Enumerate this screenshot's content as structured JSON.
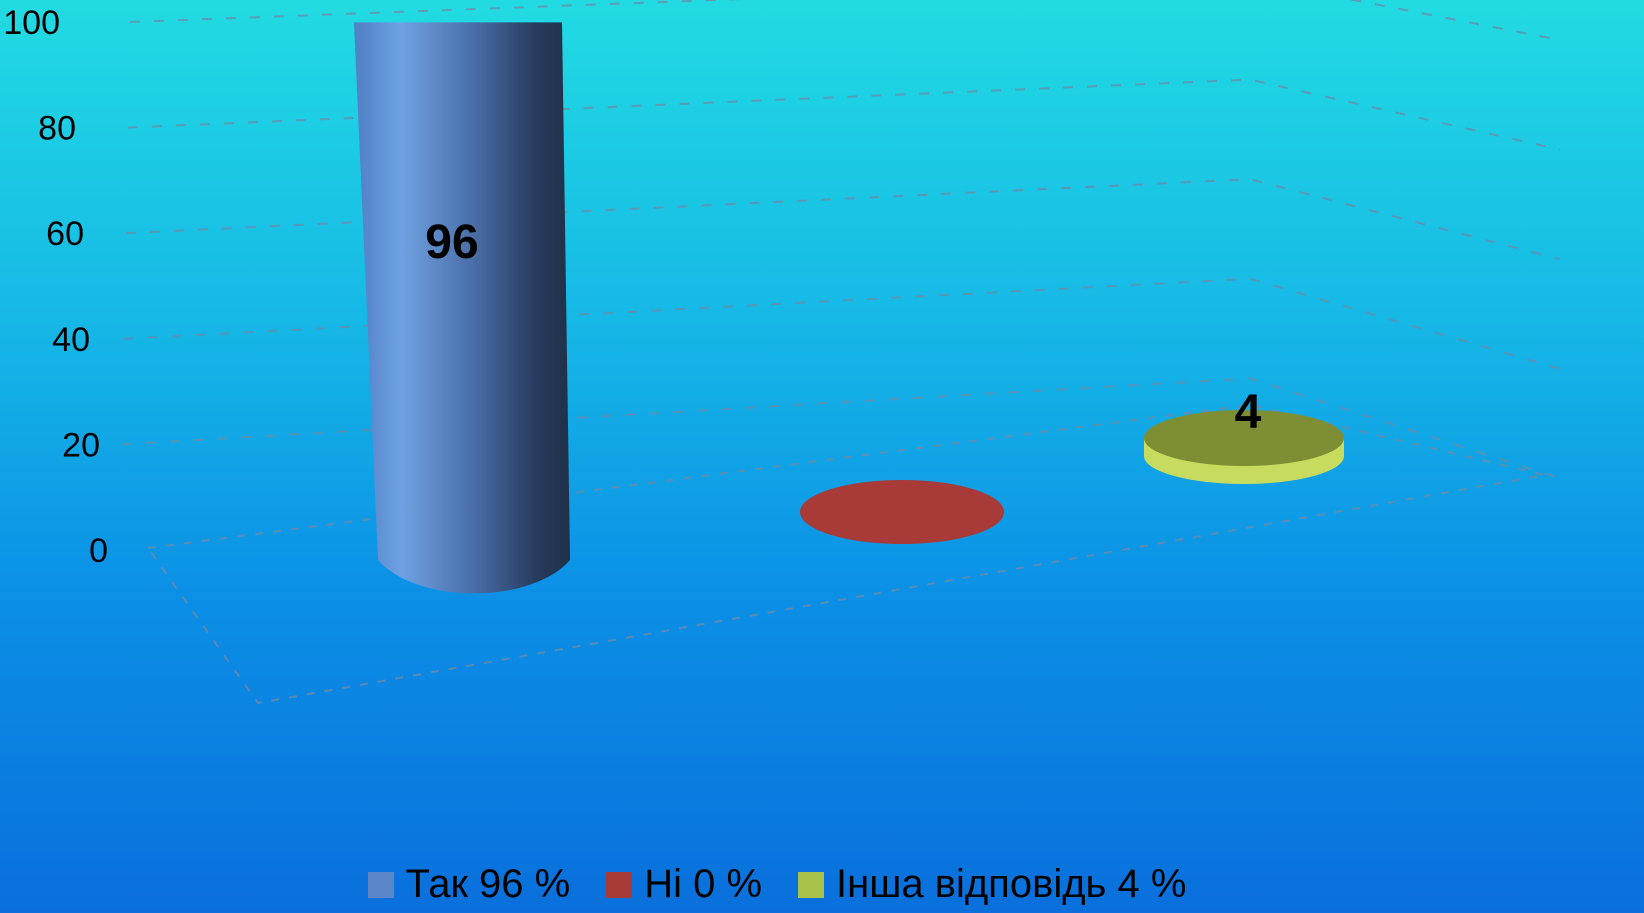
{
  "chart_data": {
    "type": "bar",
    "style": "3d-cylinder",
    "categories": [
      "Так 96 %",
      "Ні 0 %",
      "Інша відповідь 4 %"
    ],
    "values": [
      96,
      0,
      4
    ],
    "data_labels": [
      "96",
      "",
      "4"
    ],
    "colors": [
      "#5b87c9",
      "#a83a37",
      "#a9c24a"
    ],
    "yticks": [
      "0",
      "20",
      "40",
      "60",
      "80",
      "100"
    ],
    "ylim": [
      0,
      100
    ],
    "grid": true,
    "legend_position": "bottom",
    "title": "",
    "xlabel": "",
    "ylabel": ""
  }
}
